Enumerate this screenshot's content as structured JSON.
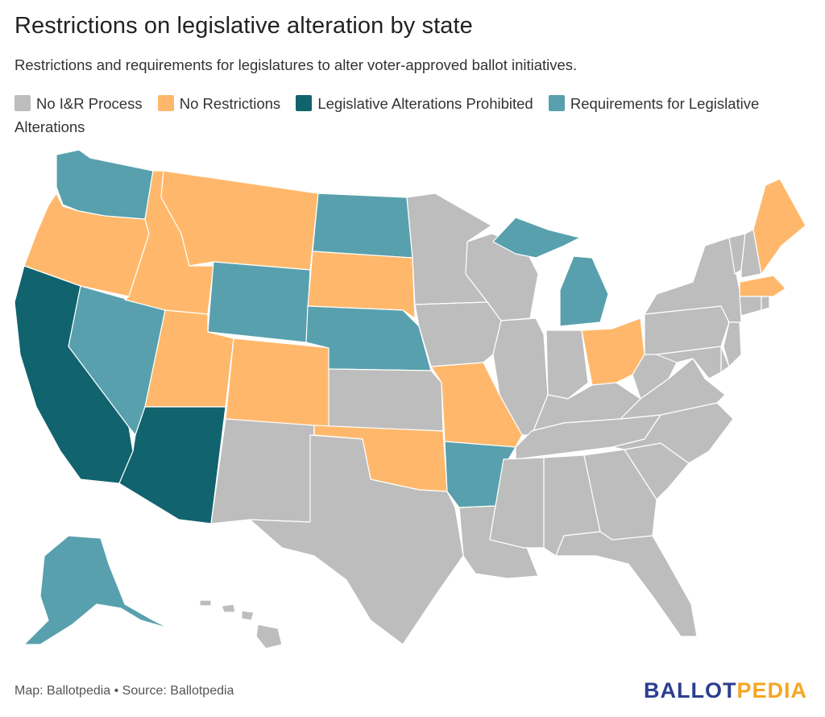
{
  "title": "Restrictions on legislative alteration by state",
  "subtitle": "Restrictions and requirements for legislatures to alter voter-approved ballot initiatives.",
  "legend": [
    {
      "key": "none",
      "label": "No I&R Process",
      "color": "#bdbdbd"
    },
    {
      "key": "norestrict",
      "label": "No Restrictions",
      "color": "#ffb86b"
    },
    {
      "key": "prohibited",
      "label": "Legislative Alterations Prohibited",
      "color": "#11636e"
    },
    {
      "key": "requirements",
      "label": "Requirements for Legislative Alterations",
      "color": "#58a0ad"
    }
  ],
  "states": {
    "WA": "requirements",
    "OR": "norestrict",
    "CA": "prohibited",
    "NV": "requirements",
    "ID": "norestrict",
    "MT": "norestrict",
    "WY": "requirements",
    "UT": "norestrict",
    "AZ": "prohibited",
    "CO": "norestrict",
    "NM": "none",
    "ND": "requirements",
    "SD": "norestrict",
    "NE": "requirements",
    "KS": "none",
    "OK": "norestrict",
    "TX": "none",
    "MN": "none",
    "IA": "none",
    "MO": "norestrict",
    "AR": "requirements",
    "LA": "none",
    "WI": "none",
    "IL": "none",
    "MI": "requirements",
    "IN": "none",
    "OH": "norestrict",
    "KY": "none",
    "TN": "none",
    "MS": "none",
    "AL": "none",
    "GA": "none",
    "FL": "none",
    "SC": "none",
    "NC": "none",
    "VA": "none",
    "WV": "none",
    "PA": "none",
    "NY": "none",
    "VT": "none",
    "NH": "none",
    "ME": "norestrict",
    "MA": "norestrict",
    "CT": "none",
    "RI": "none",
    "NJ": "none",
    "DE": "none",
    "MD": "none",
    "AK": "requirements",
    "HI": "none"
  },
  "footer": {
    "source": "Map: Ballotpedia • Source: Ballotpedia",
    "logo_part1": "BALLOT",
    "logo_part2": "PEDIA",
    "logo_color1": "#2b3e8f",
    "logo_color2": "#f5a623"
  }
}
